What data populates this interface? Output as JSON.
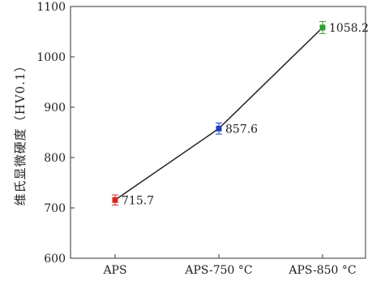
{
  "chart_data": {
    "type": "line",
    "categories": [
      "APS",
      "APS-750 °C",
      "APS-850 °C"
    ],
    "series": [
      {
        "values": [
          715.7,
          857.6,
          1058.2
        ],
        "errors": [
          10,
          11,
          12
        ],
        "marker_colors": [
          "#d62728",
          "#1f3fbf",
          "#2ca02c"
        ],
        "line_color": "#222222"
      }
    ],
    "data_labels": [
      "715.7",
      "857.6",
      "1058.2"
    ],
    "ylabel": "维氏显微硬度（HV0.1）",
    "ylim": [
      600,
      1100
    ],
    "yticks": [
      600,
      700,
      800,
      900,
      1000,
      1100
    ],
    "grid": false,
    "legend": "none"
  }
}
